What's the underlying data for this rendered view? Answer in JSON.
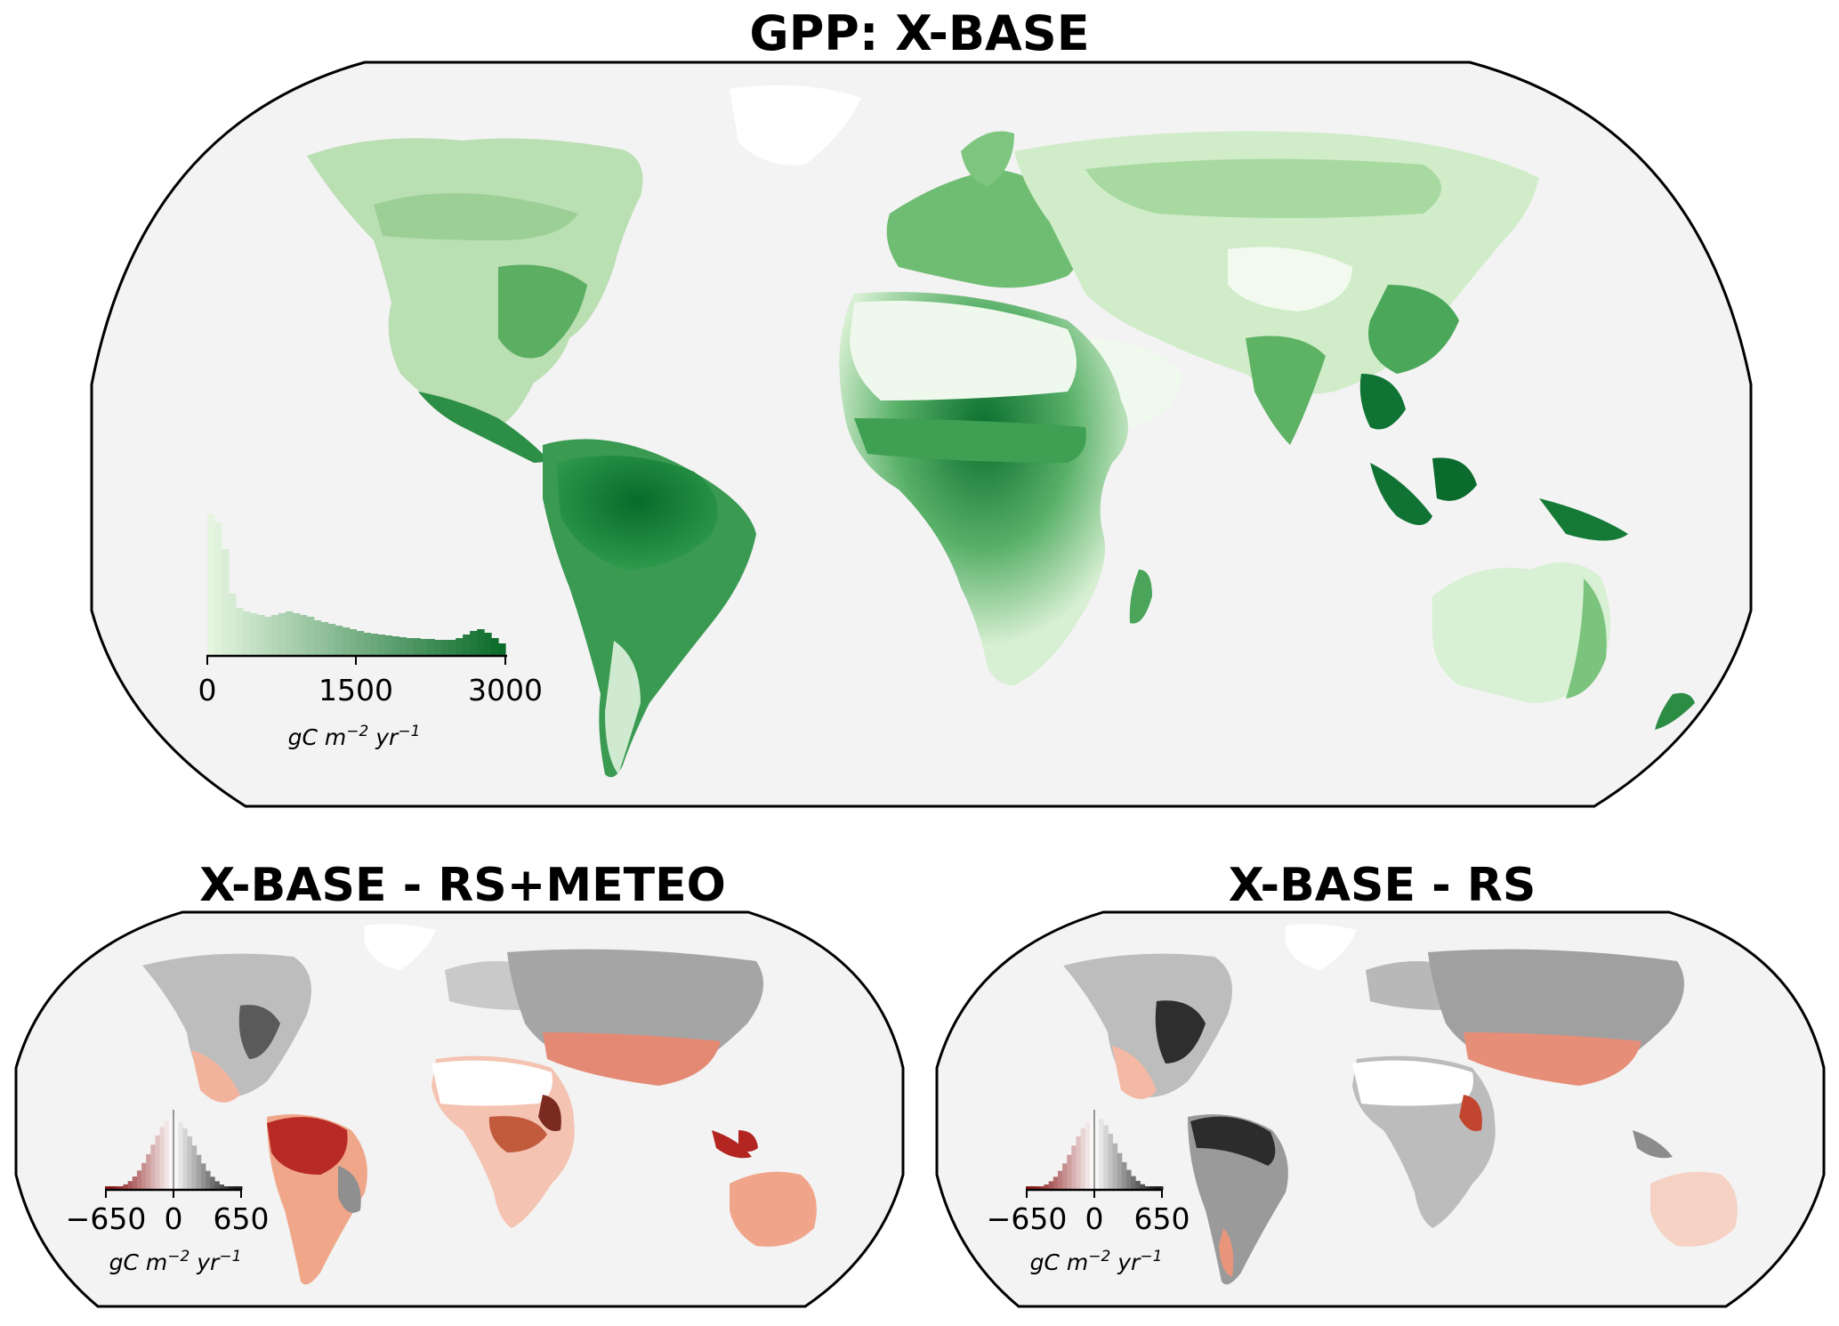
{
  "titles": {
    "main": "GPP: X-BASE",
    "left": "X-BASE - RS+METEO",
    "right": "X-BASE - RS"
  },
  "main_panel": {
    "colorbar": {
      "ticks": [
        "0",
        "1500",
        "3000"
      ],
      "unit_base": "gC m",
      "unit_exp1": "−2",
      "unit_mid": " yr",
      "unit_exp2": "−1",
      "colormap": "Greens",
      "range": [
        0,
        3000
      ]
    }
  },
  "diff_panels": {
    "colorbar": {
      "ticks": [
        "−650",
        "0",
        "650"
      ],
      "unit_base": "gC m",
      "unit_exp1": "−2",
      "unit_mid": " yr",
      "unit_exp2": "−1",
      "range": [
        -650,
        650
      ],
      "negative_color": "#8b1a1a",
      "positive_color": "#222222"
    }
  },
  "colors": {
    "ocean": "#f3f3f3",
    "green_dark": "#0a6b2a",
    "green_light": "#e5f5e0",
    "red_dark": "#a51c1c",
    "grey_dark": "#333333"
  }
}
